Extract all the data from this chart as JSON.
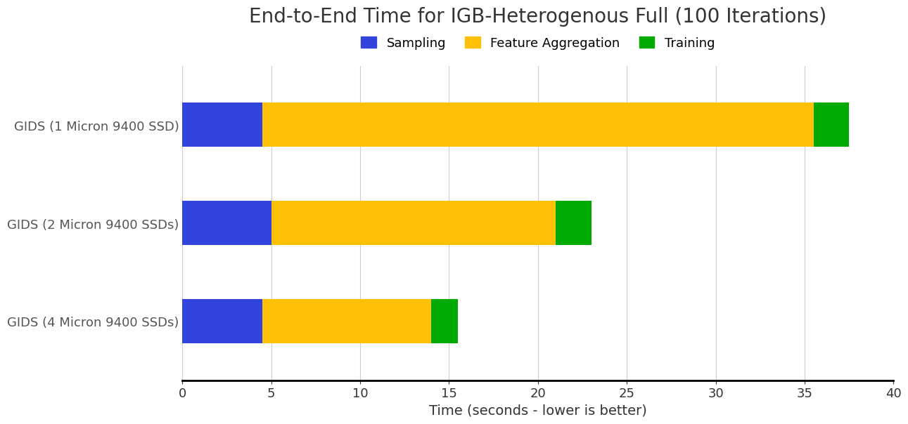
{
  "title": "End-to-End Time for IGB-Heterogenous Full (100 Iterations)",
  "xlabel": "Time (seconds - lower is better)",
  "categories": [
    "GIDS (1 Micron 9400 SSD)",
    "GIDS (2 Micron 9400 SSDs)",
    "GIDS (4 Micron 9400 SSDs)"
  ],
  "sampling": [
    4.5,
    5.0,
    4.5
  ],
  "feature_aggregation": [
    31.0,
    16.0,
    9.5
  ],
  "training": [
    2.0,
    2.0,
    1.5
  ],
  "sampling_color": "#3344dd",
  "feature_aggregation_color": "#FFC107",
  "training_color": "#00AA00",
  "xlim": [
    0,
    40
  ],
  "xticks": [
    0,
    5,
    10,
    15,
    20,
    25,
    30,
    35,
    40
  ],
  "background_color": "#ffffff",
  "grid_color": "#cccccc",
  "title_fontsize": 20,
  "label_fontsize": 14,
  "tick_fontsize": 13,
  "legend_fontsize": 13,
  "bar_height": 0.45
}
